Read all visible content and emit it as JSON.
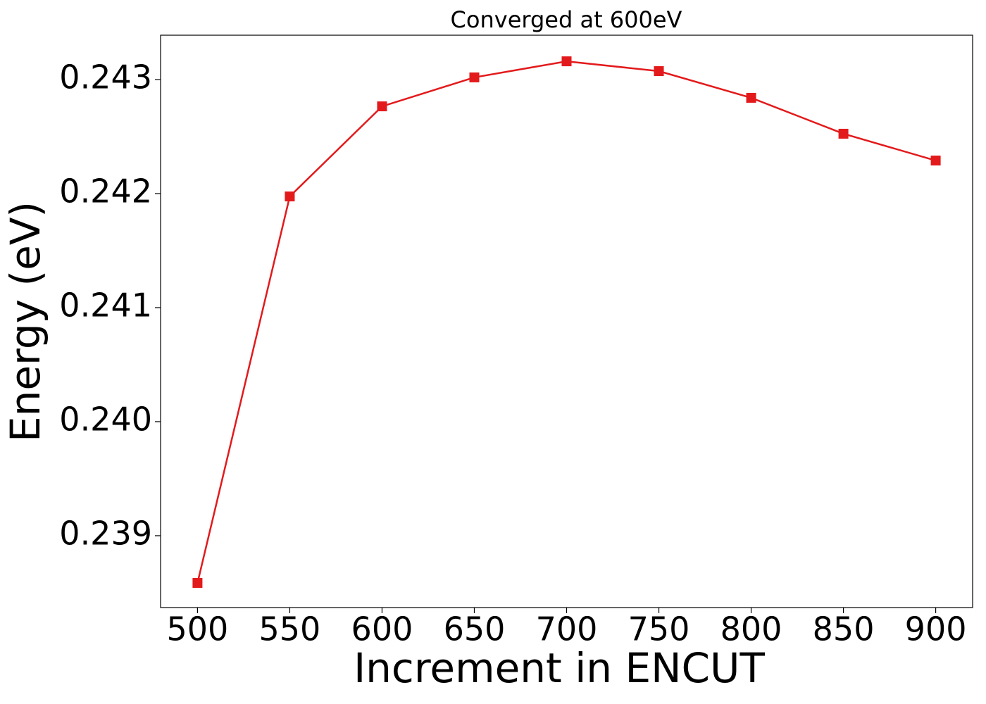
{
  "chart_data": {
    "type": "line",
    "title": "Converged at 600eV",
    "x_label": "Increment in ENCUT",
    "y_label": "Energy (eV)",
    "x": [
      500,
      550,
      600,
      650,
      700,
      750,
      800,
      850,
      900
    ],
    "series": [
      {
        "color": "#e31a1c",
        "marker": "square",
        "values": [
          0.238586,
          0.241975,
          0.242765,
          0.243019,
          0.24316,
          0.243074,
          0.24284,
          0.242525,
          0.24229
        ]
      }
    ],
    "xlim": [
      480,
      920
    ],
    "xticks": [
      500,
      550,
      600,
      650,
      700,
      750,
      800,
      850,
      900
    ],
    "ylim": [
      0.23837,
      0.243389
    ],
    "yticks": [
      0.239,
      {
        "value": 0.24,
        "label": "0.240"
      },
      0.241,
      0.242,
      0.243
    ],
    "grid": false
  }
}
